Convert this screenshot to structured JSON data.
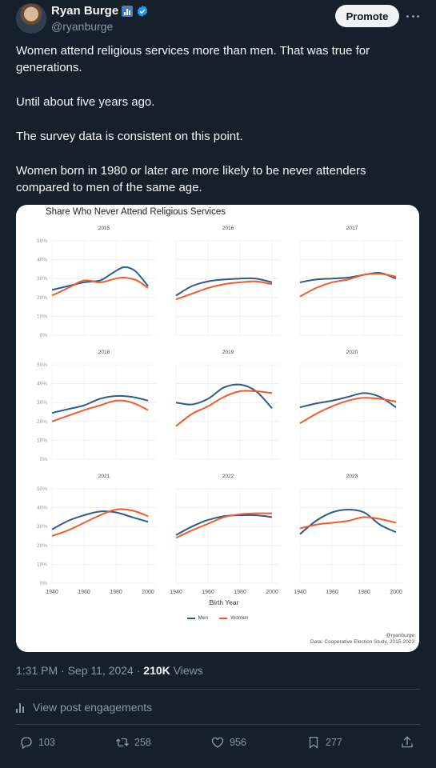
{
  "author": {
    "name": "Ryan Burge",
    "handle": "@ryanburge"
  },
  "promote_label": "Promote",
  "tweet": {
    "paragraphs": [
      "Women attend religious services more than men. That was true for generations.",
      "Until about five years ago.",
      "The survey data is consistent on this point.",
      "Women born in 1980 or later are more likely to be never attenders compared to men of the same age."
    ]
  },
  "chart_data": {
    "type": "line",
    "title": "Share Who Never Attend Religious Services",
    "xlabel": "Birth Year",
    "ylabel": "",
    "xlim": [
      1940,
      2005
    ],
    "ylim": [
      0,
      50
    ],
    "x_ticks": [
      "1940",
      "1960",
      "1980",
      "2000"
    ],
    "y_ticks": [
      "0%",
      "10%",
      "20%",
      "30%",
      "40%",
      "50%"
    ],
    "legend": [
      {
        "name": "Men",
        "color": "#2b5c8a"
      },
      {
        "name": "Women",
        "color": "#ef5b2b"
      }
    ],
    "legend_position": "bottom",
    "grid": true,
    "credit": "@ryanburge",
    "source": "Data: Cooperative Election Study, 2015-2023",
    "panels": [
      {
        "year": "2015",
        "men": [
          [
            1940,
            24
          ],
          [
            1950,
            26
          ],
          [
            1960,
            28
          ],
          [
            1970,
            29
          ],
          [
            1978,
            33
          ],
          [
            1985,
            36
          ],
          [
            1992,
            34
          ],
          [
            2000,
            26
          ]
        ],
        "women": [
          [
            1940,
            21
          ],
          [
            1950,
            25
          ],
          [
            1960,
            29
          ],
          [
            1970,
            28
          ],
          [
            1980,
            30
          ],
          [
            1985,
            30.5
          ],
          [
            1993,
            29
          ],
          [
            2000,
            25
          ]
        ]
      },
      {
        "year": "2016",
        "men": [
          [
            1940,
            21
          ],
          [
            1950,
            26
          ],
          [
            1960,
            28.5
          ],
          [
            1970,
            29.5
          ],
          [
            1980,
            30
          ],
          [
            1990,
            30
          ],
          [
            2000,
            28
          ]
        ],
        "women": [
          [
            1940,
            19
          ],
          [
            1950,
            22
          ],
          [
            1960,
            25
          ],
          [
            1970,
            27
          ],
          [
            1980,
            28
          ],
          [
            1990,
            28.5
          ],
          [
            2000,
            27
          ]
        ]
      },
      {
        "year": "2017",
        "men": [
          [
            1940,
            28
          ],
          [
            1950,
            29.5
          ],
          [
            1960,
            30
          ],
          [
            1970,
            30.5
          ],
          [
            1980,
            32
          ],
          [
            1990,
            33
          ],
          [
            2000,
            30
          ]
        ],
        "women": [
          [
            1940,
            20.5
          ],
          [
            1950,
            25
          ],
          [
            1960,
            28
          ],
          [
            1970,
            29.5
          ],
          [
            1980,
            32
          ],
          [
            1990,
            32.5
          ],
          [
            2000,
            31
          ]
        ]
      },
      {
        "year": "2018",
        "men": [
          [
            1940,
            24.5
          ],
          [
            1950,
            26.5
          ],
          [
            1960,
            28.5
          ],
          [
            1970,
            32
          ],
          [
            1980,
            33.5
          ],
          [
            1990,
            33
          ],
          [
            2000,
            31
          ]
        ],
        "women": [
          [
            1940,
            20
          ],
          [
            1950,
            23
          ],
          [
            1960,
            26
          ],
          [
            1970,
            28.5
          ],
          [
            1980,
            31
          ],
          [
            1990,
            30
          ],
          [
            2000,
            26
          ]
        ]
      },
      {
        "year": "2019",
        "men": [
          [
            1940,
            30
          ],
          [
            1950,
            29
          ],
          [
            1960,
            32
          ],
          [
            1970,
            38
          ],
          [
            1980,
            39.5
          ],
          [
            1990,
            36
          ],
          [
            2000,
            27
          ]
        ],
        "women": [
          [
            1940,
            17.5
          ],
          [
            1950,
            24
          ],
          [
            1960,
            28
          ],
          [
            1970,
            33
          ],
          [
            1980,
            36
          ],
          [
            1990,
            36
          ],
          [
            2000,
            35
          ]
        ]
      },
      {
        "year": "2020",
        "men": [
          [
            1940,
            27.5
          ],
          [
            1950,
            29.5
          ],
          [
            1960,
            31
          ],
          [
            1970,
            33
          ],
          [
            1980,
            35
          ],
          [
            1990,
            33
          ],
          [
            2000,
            27.5
          ]
        ],
        "women": [
          [
            1940,
            19
          ],
          [
            1950,
            24
          ],
          [
            1960,
            28
          ],
          [
            1970,
            31
          ],
          [
            1980,
            32.5
          ],
          [
            1990,
            32
          ],
          [
            2000,
            30.5
          ]
        ]
      },
      {
        "year": "2021",
        "men": [
          [
            1940,
            28.5
          ],
          [
            1950,
            33
          ],
          [
            1960,
            36
          ],
          [
            1970,
            38
          ],
          [
            1980,
            37.5
          ],
          [
            1990,
            35
          ],
          [
            2000,
            32.5
          ]
        ],
        "women": [
          [
            1940,
            25
          ],
          [
            1950,
            28
          ],
          [
            1960,
            32
          ],
          [
            1970,
            36
          ],
          [
            1980,
            39
          ],
          [
            1990,
            38.5
          ],
          [
            2000,
            35.5
          ]
        ]
      },
      {
        "year": "2022",
        "men": [
          [
            1940,
            25.5
          ],
          [
            1950,
            30
          ],
          [
            1960,
            33.5
          ],
          [
            1970,
            35.5
          ],
          [
            1980,
            36
          ],
          [
            1990,
            36
          ],
          [
            2000,
            35
          ]
        ],
        "women": [
          [
            1940,
            24
          ],
          [
            1950,
            28
          ],
          [
            1960,
            31.5
          ],
          [
            1970,
            35
          ],
          [
            1980,
            36.5
          ],
          [
            1990,
            37
          ],
          [
            2000,
            37
          ]
        ]
      },
      {
        "year": "2023",
        "men": [
          [
            1940,
            26
          ],
          [
            1950,
            33
          ],
          [
            1960,
            37.5
          ],
          [
            1970,
            39
          ],
          [
            1980,
            37.5
          ],
          [
            1990,
            31
          ],
          [
            2000,
            27
          ]
        ],
        "women": [
          [
            1940,
            29
          ],
          [
            1950,
            31
          ],
          [
            1960,
            32
          ],
          [
            1970,
            33
          ],
          [
            1980,
            35
          ],
          [
            1990,
            34
          ],
          [
            2000,
            32
          ]
        ]
      }
    ]
  },
  "meta": {
    "time": "1:31 PM · Sep 11, 2024 · ",
    "views_count": "210K",
    "views_label": " Views"
  },
  "engagements_label": "View post engagements",
  "actions": {
    "replies": "103",
    "reposts": "258",
    "likes": "956",
    "bookmarks": "277"
  }
}
